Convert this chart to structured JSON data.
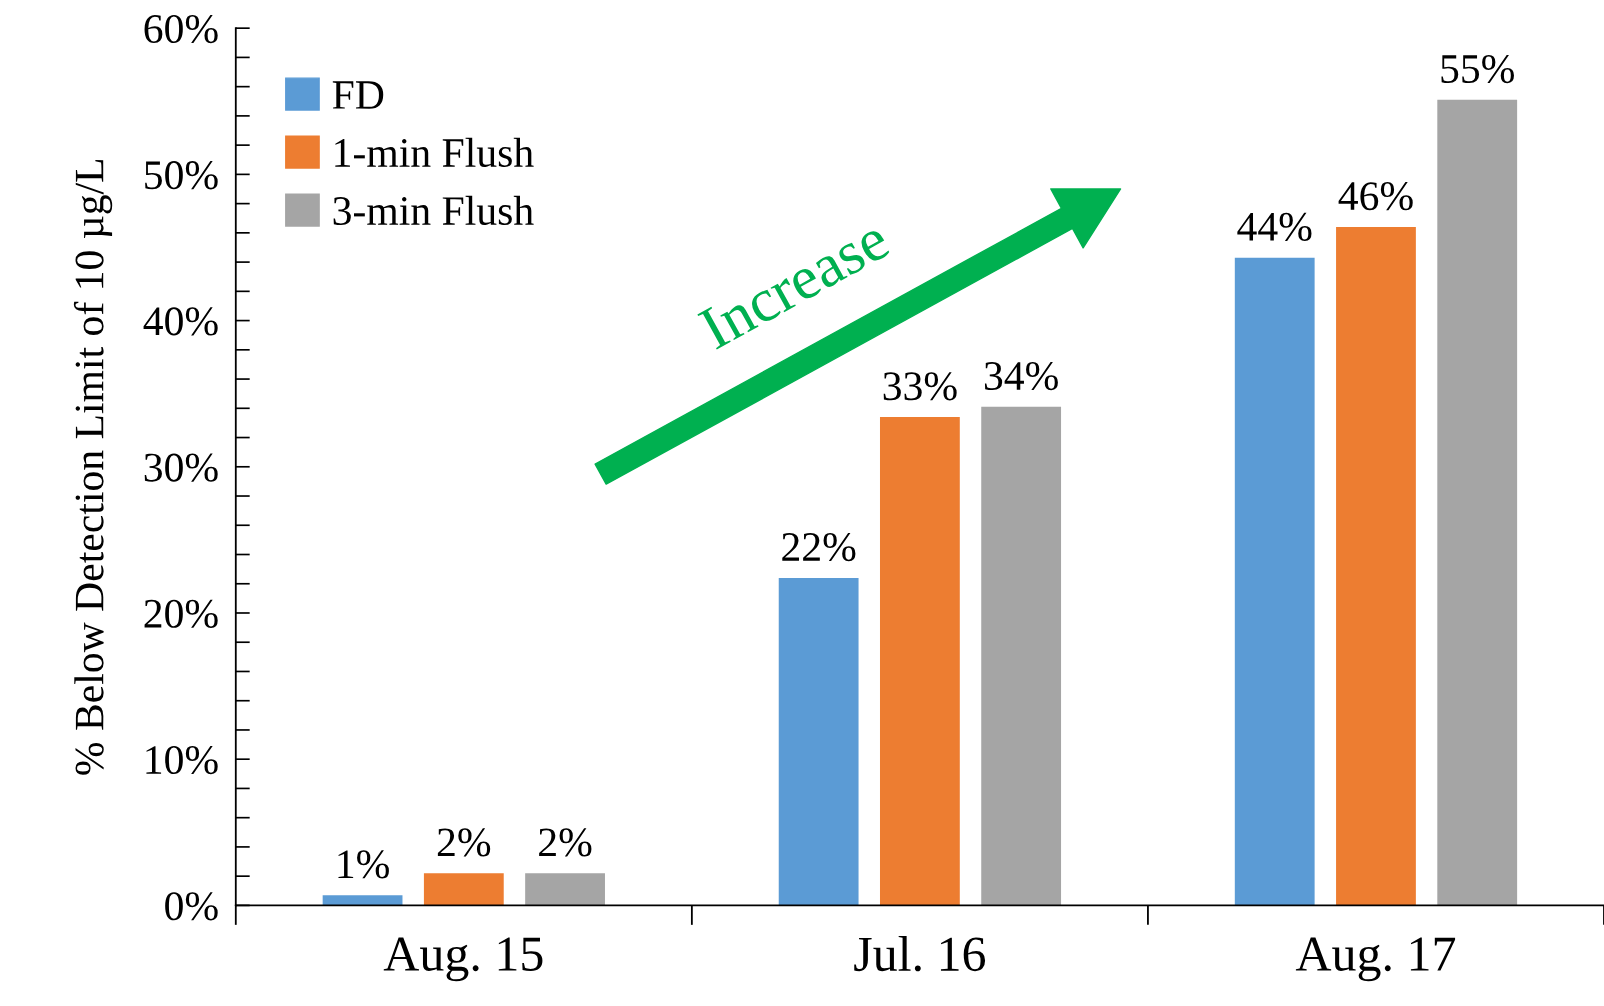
{
  "chart_data": {
    "type": "bar",
    "ylabel": "% Below Detection Limit of 10 µg/L",
    "categories": [
      "Aug. 15",
      "Jul. 16",
      "Aug. 17"
    ],
    "series": [
      {
        "name": "FD",
        "color": "#5b9bd5",
        "values": [
          0.7,
          22.4,
          44.3
        ],
        "value_labels": [
          "1%",
          "22%",
          "44%"
        ]
      },
      {
        "name": "1-min Flush",
        "color": "#ed7d31",
        "values": [
          2.2,
          33.4,
          46.4
        ],
        "value_labels": [
          "2%",
          "33%",
          "46%"
        ]
      },
      {
        "name": "3-min Flush",
        "color": "#a5a5a5",
        "values": [
          2.2,
          34.1,
          55.1
        ],
        "value_labels": [
          "2%",
          "34%",
          "55%"
        ]
      }
    ],
    "ylim": [
      0,
      60
    ],
    "yticks": [
      {
        "value": 0,
        "label": "0%"
      },
      {
        "value": 2,
        "label": null
      },
      {
        "value": 4,
        "label": null
      },
      {
        "value": 6,
        "label": null
      },
      {
        "value": 8,
        "label": null
      },
      {
        "value": 10,
        "label": "10%"
      },
      {
        "value": 12,
        "label": null
      },
      {
        "value": 14,
        "label": null
      },
      {
        "value": 16,
        "label": null
      },
      {
        "value": 18,
        "label": null
      },
      {
        "value": 20,
        "label": "20%"
      },
      {
        "value": 22,
        "label": null
      },
      {
        "value": 24,
        "label": null
      },
      {
        "value": 26,
        "label": null
      },
      {
        "value": 28,
        "label": null
      },
      {
        "value": 30,
        "label": "30%"
      },
      {
        "value": 32,
        "label": null
      },
      {
        "value": 34,
        "label": null
      },
      {
        "value": 36,
        "label": null
      },
      {
        "value": 38,
        "label": null
      },
      {
        "value": 40,
        "label": "40%"
      },
      {
        "value": 42,
        "label": null
      },
      {
        "value": 44,
        "label": null
      },
      {
        "value": 46,
        "label": null
      },
      {
        "value": 48,
        "label": null
      },
      {
        "value": 50,
        "label": "50%"
      },
      {
        "value": 52,
        "label": null
      },
      {
        "value": 54,
        "label": null
      },
      {
        "value": 56,
        "label": null
      },
      {
        "value": 58,
        "label": null
      },
      {
        "value": 60,
        "label": "60%"
      }
    ],
    "annotations": [
      "Increase"
    ],
    "grid": false,
    "legend": "top left"
  }
}
